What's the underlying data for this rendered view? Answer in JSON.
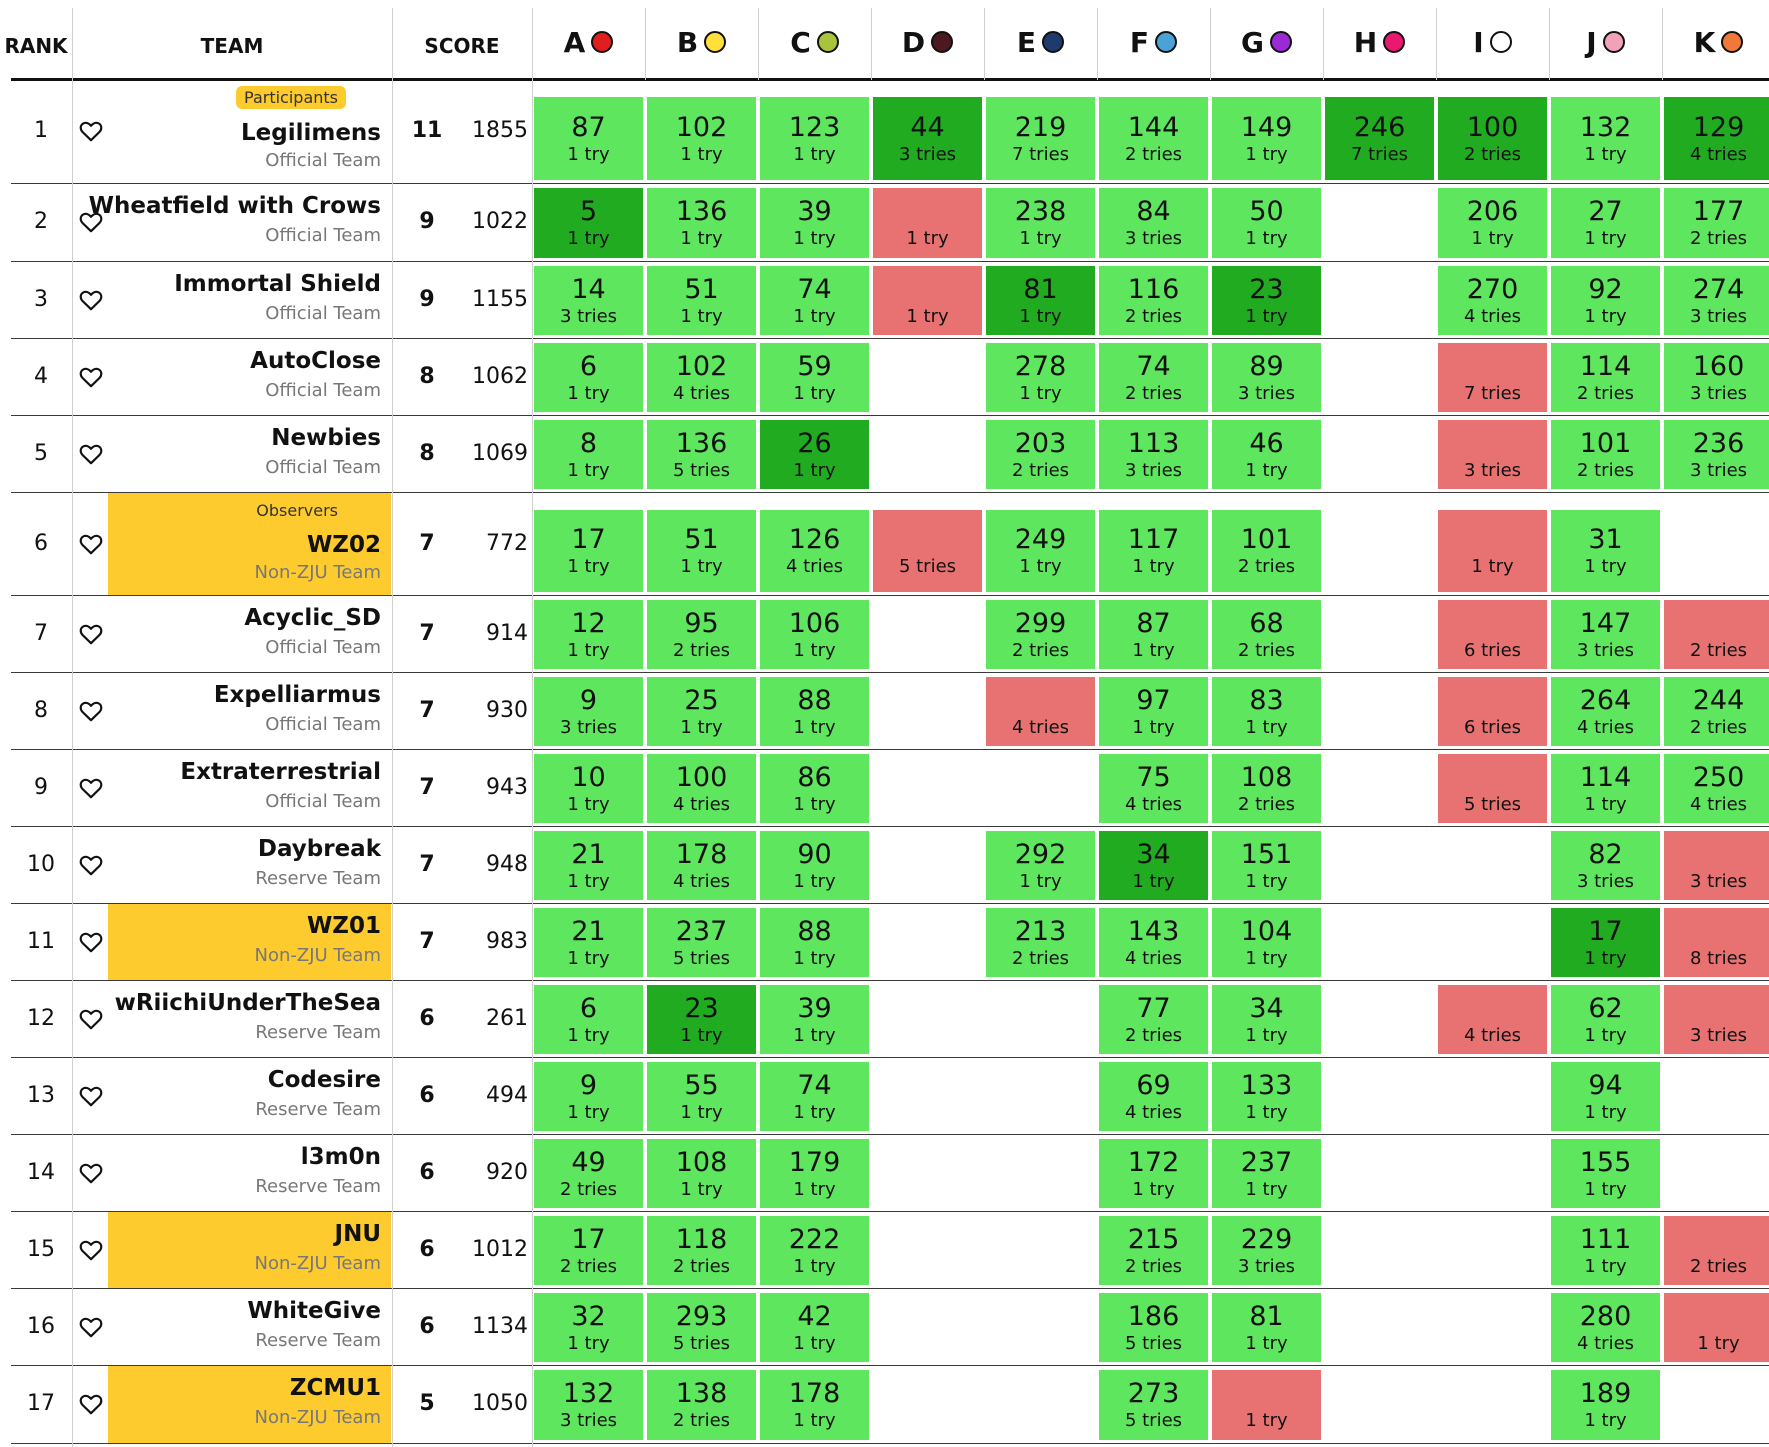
{
  "header": {
    "rank": "RANK",
    "team": "TEAM",
    "score": "SCORE"
  },
  "problems": [
    {
      "label": "A",
      "color": "#e01e1e"
    },
    {
      "label": "B",
      "color": "#ffe03a"
    },
    {
      "label": "C",
      "color": "#a8c43c"
    },
    {
      "label": "D",
      "color": "#4a1a20"
    },
    {
      "label": "E",
      "color": "#1f3a6e"
    },
    {
      "label": "F",
      "color": "#4aa2d6"
    },
    {
      "label": "G",
      "color": "#9a2ad6"
    },
    {
      "label": "H",
      "color": "#e8196e"
    },
    {
      "label": "I",
      "color": "#ffffff"
    },
    {
      "label": "J",
      "color": "#f2a2b8"
    },
    {
      "label": "K",
      "color": "#f07838"
    }
  ],
  "colors": {
    "accepted": "#5ee65e",
    "first_blood": "#21ab21",
    "rejected": "#e87272",
    "highlight": "#fecb2f"
  },
  "rows": [
    {
      "rank": "1",
      "name": "Legilimens",
      "sub": "Official Team",
      "tag": "Participants",
      "hl": false,
      "solved": "11",
      "penalty": "1855",
      "cells": [
        [
          "ac",
          "87",
          "1 try"
        ],
        [
          "ac",
          "102",
          "1 try"
        ],
        [
          "ac",
          "123",
          "1 try"
        ],
        [
          "fb",
          "44",
          "3 tries"
        ],
        [
          "ac",
          "219",
          "7 tries"
        ],
        [
          "ac",
          "144",
          "2 tries"
        ],
        [
          "ac",
          "149",
          "1 try"
        ],
        [
          "fb",
          "246",
          "7 tries"
        ],
        [
          "fb",
          "100",
          "2 tries"
        ],
        [
          "ac",
          "132",
          "1 try"
        ],
        [
          "fb",
          "129",
          "4 tries"
        ]
      ]
    },
    {
      "rank": "2",
      "name": "Wheatfield with Crows",
      "sub": "Official Team",
      "tag": "",
      "hl": false,
      "solved": "9",
      "penalty": "1022",
      "cells": [
        [
          "fb",
          "5",
          "1 try"
        ],
        [
          "ac",
          "136",
          "1 try"
        ],
        [
          "ac",
          "39",
          "1 try"
        ],
        [
          "wa",
          "",
          "1 try"
        ],
        [
          "ac",
          "238",
          "1 try"
        ],
        [
          "ac",
          "84",
          "3 tries"
        ],
        [
          "ac",
          "50",
          "1 try"
        ],
        [
          "",
          "",
          ""
        ],
        [
          "ac",
          "206",
          "1 try"
        ],
        [
          "ac",
          "27",
          "1 try"
        ],
        [
          "ac",
          "177",
          "2 tries"
        ]
      ]
    },
    {
      "rank": "3",
      "name": "Immortal Shield",
      "sub": "Official Team",
      "tag": "",
      "hl": false,
      "solved": "9",
      "penalty": "1155",
      "cells": [
        [
          "ac",
          "14",
          "3 tries"
        ],
        [
          "ac",
          "51",
          "1 try"
        ],
        [
          "ac",
          "74",
          "1 try"
        ],
        [
          "wa",
          "",
          "1 try"
        ],
        [
          "fb",
          "81",
          "1 try"
        ],
        [
          "ac",
          "116",
          "2 tries"
        ],
        [
          "fb",
          "23",
          "1 try"
        ],
        [
          "",
          "",
          ""
        ],
        [
          "ac",
          "270",
          "4 tries"
        ],
        [
          "ac",
          "92",
          "1 try"
        ],
        [
          "ac",
          "274",
          "3 tries"
        ]
      ]
    },
    {
      "rank": "4",
      "name": "AutoClose",
      "sub": "Official Team",
      "tag": "",
      "hl": false,
      "solved": "8",
      "penalty": "1062",
      "cells": [
        [
          "ac",
          "6",
          "1 try"
        ],
        [
          "ac",
          "102",
          "4 tries"
        ],
        [
          "ac",
          "59",
          "1 try"
        ],
        [
          "",
          "",
          ""
        ],
        [
          "ac",
          "278",
          "1 try"
        ],
        [
          "ac",
          "74",
          "2 tries"
        ],
        [
          "ac",
          "89",
          "3 tries"
        ],
        [
          "",
          "",
          ""
        ],
        [
          "wa",
          "",
          "7 tries"
        ],
        [
          "ac",
          "114",
          "2 tries"
        ],
        [
          "ac",
          "160",
          "3 tries"
        ]
      ]
    },
    {
      "rank": "5",
      "name": "Newbies",
      "sub": "Official Team",
      "tag": "",
      "hl": false,
      "solved": "8",
      "penalty": "1069",
      "cells": [
        [
          "ac",
          "8",
          "1 try"
        ],
        [
          "ac",
          "136",
          "5 tries"
        ],
        [
          "fb",
          "26",
          "1 try"
        ],
        [
          "",
          "",
          ""
        ],
        [
          "ac",
          "203",
          "2 tries"
        ],
        [
          "ac",
          "113",
          "3 tries"
        ],
        [
          "ac",
          "46",
          "1 try"
        ],
        [
          "",
          "",
          ""
        ],
        [
          "wa",
          "",
          "3 tries"
        ],
        [
          "ac",
          "101",
          "2 tries"
        ],
        [
          "ac",
          "236",
          "3 tries"
        ]
      ]
    },
    {
      "rank": "6",
      "name": "WZ02",
      "sub": "Non-ZJU Team",
      "tag": "Observers",
      "hl": true,
      "solved": "7",
      "penalty": "772",
      "cells": [
        [
          "ac",
          "17",
          "1 try"
        ],
        [
          "ac",
          "51",
          "1 try"
        ],
        [
          "ac",
          "126",
          "4 tries"
        ],
        [
          "wa",
          "",
          "5 tries"
        ],
        [
          "ac",
          "249",
          "1 try"
        ],
        [
          "ac",
          "117",
          "1 try"
        ],
        [
          "ac",
          "101",
          "2 tries"
        ],
        [
          "",
          "",
          ""
        ],
        [
          "wa",
          "",
          "1 try"
        ],
        [
          "ac",
          "31",
          "1 try"
        ],
        [
          "",
          "",
          ""
        ]
      ]
    },
    {
      "rank": "7",
      "name": "Acyclic_SD",
      "sub": "Official Team",
      "tag": "",
      "hl": false,
      "solved": "7",
      "penalty": "914",
      "cells": [
        [
          "ac",
          "12",
          "1 try"
        ],
        [
          "ac",
          "95",
          "2 tries"
        ],
        [
          "ac",
          "106",
          "1 try"
        ],
        [
          "",
          "",
          ""
        ],
        [
          "ac",
          "299",
          "2 tries"
        ],
        [
          "ac",
          "87",
          "1 try"
        ],
        [
          "ac",
          "68",
          "2 tries"
        ],
        [
          "",
          "",
          ""
        ],
        [
          "wa",
          "",
          "6 tries"
        ],
        [
          "ac",
          "147",
          "3 tries"
        ],
        [
          "wa",
          "",
          "2 tries"
        ]
      ]
    },
    {
      "rank": "8",
      "name": "Expelliarmus",
      "sub": "Official Team",
      "tag": "",
      "hl": false,
      "solved": "7",
      "penalty": "930",
      "cells": [
        [
          "ac",
          "9",
          "3 tries"
        ],
        [
          "ac",
          "25",
          "1 try"
        ],
        [
          "ac",
          "88",
          "1 try"
        ],
        [
          "",
          "",
          ""
        ],
        [
          "wa",
          "",
          "4 tries"
        ],
        [
          "ac",
          "97",
          "1 try"
        ],
        [
          "ac",
          "83",
          "1 try"
        ],
        [
          "",
          "",
          ""
        ],
        [
          "wa",
          "",
          "6 tries"
        ],
        [
          "ac",
          "264",
          "4 tries"
        ],
        [
          "ac",
          "244",
          "2 tries"
        ]
      ]
    },
    {
      "rank": "9",
      "name": "Extraterrestrial",
      "sub": "Official Team",
      "tag": "",
      "hl": false,
      "solved": "7",
      "penalty": "943",
      "cells": [
        [
          "ac",
          "10",
          "1 try"
        ],
        [
          "ac",
          "100",
          "4 tries"
        ],
        [
          "ac",
          "86",
          "1 try"
        ],
        [
          "",
          "",
          ""
        ],
        [
          "",
          "",
          ""
        ],
        [
          "ac",
          "75",
          "4 tries"
        ],
        [
          "ac",
          "108",
          "2 tries"
        ],
        [
          "",
          "",
          ""
        ],
        [
          "wa",
          "",
          "5 tries"
        ],
        [
          "ac",
          "114",
          "1 try"
        ],
        [
          "ac",
          "250",
          "4 tries"
        ]
      ]
    },
    {
      "rank": "10",
      "name": "Daybreak",
      "sub": "Reserve Team",
      "tag": "",
      "hl": false,
      "solved": "7",
      "penalty": "948",
      "cells": [
        [
          "ac",
          "21",
          "1 try"
        ],
        [
          "ac",
          "178",
          "4 tries"
        ],
        [
          "ac",
          "90",
          "1 try"
        ],
        [
          "",
          "",
          ""
        ],
        [
          "ac",
          "292",
          "1 try"
        ],
        [
          "fb",
          "34",
          "1 try"
        ],
        [
          "ac",
          "151",
          "1 try"
        ],
        [
          "",
          "",
          ""
        ],
        [
          "",
          "",
          ""
        ],
        [
          "ac",
          "82",
          "3 tries"
        ],
        [
          "wa",
          "",
          "3 tries"
        ]
      ]
    },
    {
      "rank": "11",
      "name": "WZ01",
      "sub": "Non-ZJU Team",
      "tag": "",
      "hl": true,
      "solved": "7",
      "penalty": "983",
      "cells": [
        [
          "ac",
          "21",
          "1 try"
        ],
        [
          "ac",
          "237",
          "5 tries"
        ],
        [
          "ac",
          "88",
          "1 try"
        ],
        [
          "",
          "",
          ""
        ],
        [
          "ac",
          "213",
          "2 tries"
        ],
        [
          "ac",
          "143",
          "4 tries"
        ],
        [
          "ac",
          "104",
          "1 try"
        ],
        [
          "",
          "",
          ""
        ],
        [
          "",
          "",
          ""
        ],
        [
          "fb",
          "17",
          "1 try"
        ],
        [
          "wa",
          "",
          "8 tries"
        ]
      ]
    },
    {
      "rank": "12",
      "name": "wRiichiUnderTheSea",
      "sub": "Reserve Team",
      "tag": "",
      "hl": false,
      "solved": "6",
      "penalty": "261",
      "cells": [
        [
          "ac",
          "6",
          "1 try"
        ],
        [
          "fb",
          "23",
          "1 try"
        ],
        [
          "ac",
          "39",
          "1 try"
        ],
        [
          "",
          "",
          ""
        ],
        [
          "",
          "",
          ""
        ],
        [
          "ac",
          "77",
          "2 tries"
        ],
        [
          "ac",
          "34",
          "1 try"
        ],
        [
          "",
          "",
          ""
        ],
        [
          "wa",
          "",
          "4 tries"
        ],
        [
          "ac",
          "62",
          "1 try"
        ],
        [
          "wa",
          "",
          "3 tries"
        ]
      ]
    },
    {
      "rank": "13",
      "name": "Codesire",
      "sub": "Reserve Team",
      "tag": "",
      "hl": false,
      "solved": "6",
      "penalty": "494",
      "cells": [
        [
          "ac",
          "9",
          "1 try"
        ],
        [
          "ac",
          "55",
          "1 try"
        ],
        [
          "ac",
          "74",
          "1 try"
        ],
        [
          "",
          "",
          ""
        ],
        [
          "",
          "",
          ""
        ],
        [
          "ac",
          "69",
          "4 tries"
        ],
        [
          "ac",
          "133",
          "1 try"
        ],
        [
          "",
          "",
          ""
        ],
        [
          "",
          "",
          ""
        ],
        [
          "ac",
          "94",
          "1 try"
        ],
        [
          "",
          "",
          ""
        ]
      ]
    },
    {
      "rank": "14",
      "name": "l3m0n",
      "sub": "Reserve Team",
      "tag": "",
      "hl": false,
      "solved": "6",
      "penalty": "920",
      "cells": [
        [
          "ac",
          "49",
          "2 tries"
        ],
        [
          "ac",
          "108",
          "1 try"
        ],
        [
          "ac",
          "179",
          "1 try"
        ],
        [
          "",
          "",
          ""
        ],
        [
          "",
          "",
          ""
        ],
        [
          "ac",
          "172",
          "1 try"
        ],
        [
          "ac",
          "237",
          "1 try"
        ],
        [
          "",
          "",
          ""
        ],
        [
          "",
          "",
          ""
        ],
        [
          "ac",
          "155",
          "1 try"
        ],
        [
          "",
          "",
          ""
        ]
      ]
    },
    {
      "rank": "15",
      "name": "JNU",
      "sub": "Non-ZJU Team",
      "tag": "",
      "hl": true,
      "solved": "6",
      "penalty": "1012",
      "cells": [
        [
          "ac",
          "17",
          "2 tries"
        ],
        [
          "ac",
          "118",
          "2 tries"
        ],
        [
          "ac",
          "222",
          "1 try"
        ],
        [
          "",
          "",
          ""
        ],
        [
          "",
          "",
          ""
        ],
        [
          "ac",
          "215",
          "2 tries"
        ],
        [
          "ac",
          "229",
          "3 tries"
        ],
        [
          "",
          "",
          ""
        ],
        [
          "",
          "",
          ""
        ],
        [
          "ac",
          "111",
          "1 try"
        ],
        [
          "wa",
          "",
          "2 tries"
        ]
      ]
    },
    {
      "rank": "16",
      "name": "WhiteGive",
      "sub": "Reserve Team",
      "tag": "",
      "hl": false,
      "solved": "6",
      "penalty": "1134",
      "cells": [
        [
          "ac",
          "32",
          "1 try"
        ],
        [
          "ac",
          "293",
          "5 tries"
        ],
        [
          "ac",
          "42",
          "1 try"
        ],
        [
          "",
          "",
          ""
        ],
        [
          "",
          "",
          ""
        ],
        [
          "ac",
          "186",
          "5 tries"
        ],
        [
          "ac",
          "81",
          "1 try"
        ],
        [
          "",
          "",
          ""
        ],
        [
          "",
          "",
          ""
        ],
        [
          "ac",
          "280",
          "4 tries"
        ],
        [
          "wa",
          "",
          "1 try"
        ]
      ]
    },
    {
      "rank": "17",
      "name": "ZCMU1",
      "sub": "Non-ZJU Team",
      "tag": "",
      "hl": true,
      "solved": "5",
      "penalty": "1050",
      "cells": [
        [
          "ac",
          "132",
          "3 tries"
        ],
        [
          "ac",
          "138",
          "2 tries"
        ],
        [
          "ac",
          "178",
          "1 try"
        ],
        [
          "",
          "",
          ""
        ],
        [
          "",
          "",
          ""
        ],
        [
          "ac",
          "273",
          "5 tries"
        ],
        [
          "wa",
          "",
          "1 try"
        ],
        [
          "",
          "",
          ""
        ],
        [
          "",
          "",
          ""
        ],
        [
          "ac",
          "189",
          "1 try"
        ],
        [
          "",
          "",
          ""
        ]
      ]
    }
  ]
}
